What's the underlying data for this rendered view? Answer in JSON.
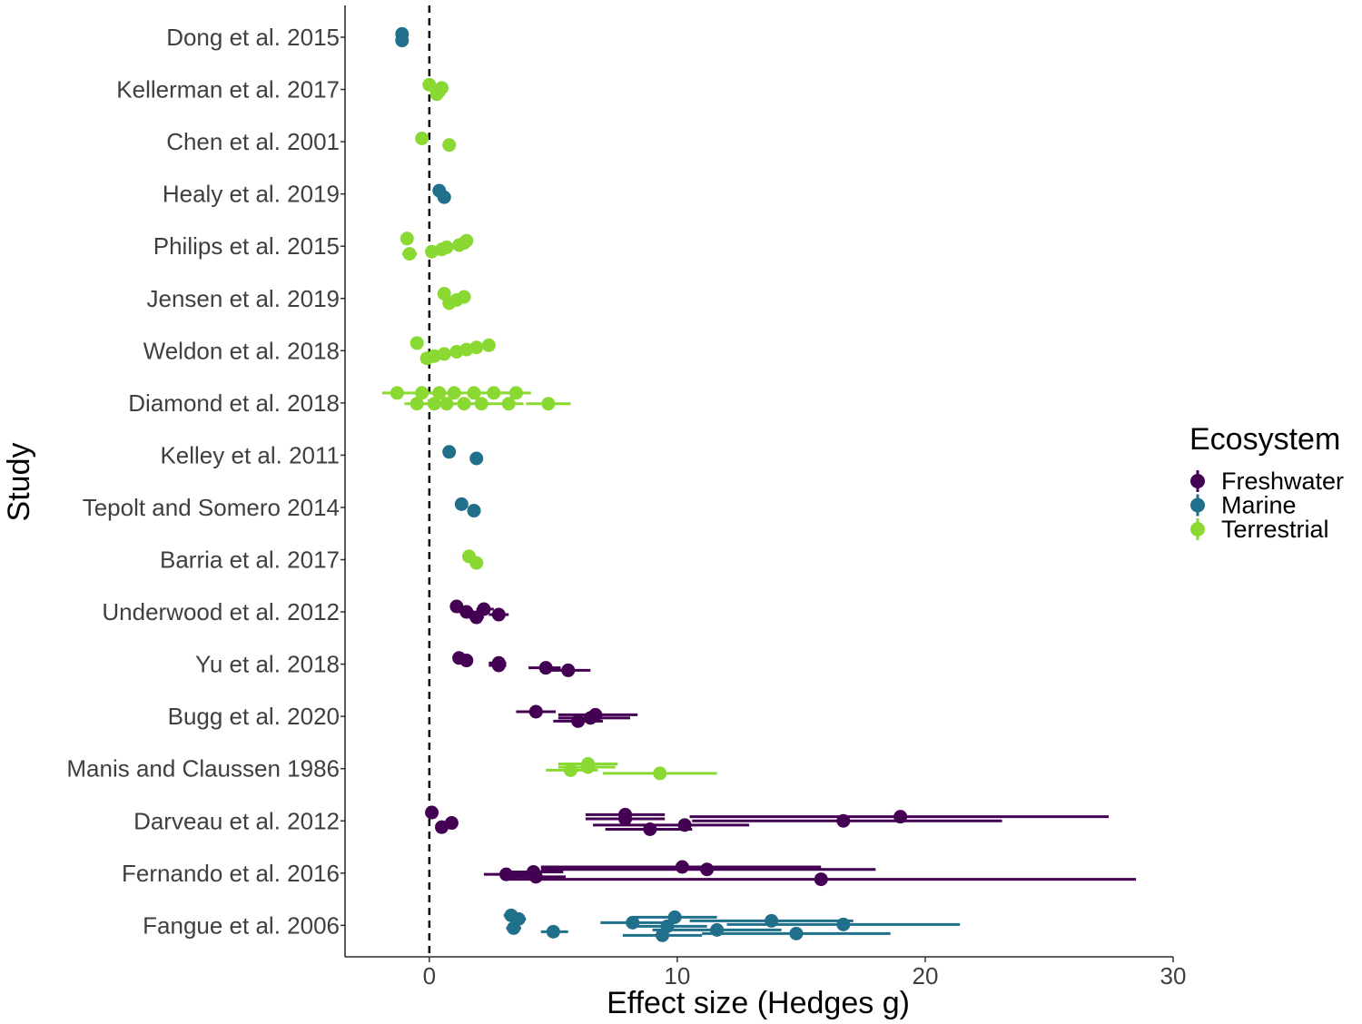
{
  "chart_data": {
    "type": "scatter",
    "subtype": "forest-plot",
    "title": "",
    "xlabel": "Effect size (Hedges g)",
    "ylabel": "Study",
    "xlim": [
      -3.4,
      30
    ],
    "x_ticks": [
      0,
      10,
      20,
      30
    ],
    "reference_line": {
      "x": 0,
      "style": "dashed"
    },
    "grid": false,
    "legend": {
      "title": "Ecosystem",
      "position": "right",
      "entries": [
        {
          "name": "Freshwater",
          "color": "#440154"
        },
        {
          "name": "Marine",
          "color": "#21708b"
        },
        {
          "name": "Terrestrial",
          "color": "#8ad932"
        }
      ]
    },
    "studies": [
      "Dong et al. 2015",
      "Kellerman et al. 2017",
      "Chen et al. 2001",
      "Healy et al. 2019",
      "Philips et al. 2015",
      "Jensen et al. 2019",
      "Weldon et al. 2018",
      "Diamond et al. 2018",
      "Kelley et al. 2011",
      "Tepolt and Somero 2014",
      "Barria et al. 2017",
      "Underwood et al. 2012",
      "Yu et al. 2018",
      "Bugg et al. 2020",
      "Manis and Claussen 1986",
      "Darveau et al. 2012",
      "Fernando et al. 2016",
      "Fangue et al. 2006"
    ],
    "series": [
      {
        "name": "Freshwater",
        "points": [
          {
            "study": "Underwood et al. 2012",
            "x": 1.1,
            "lo": 0.9,
            "hi": 1.3
          },
          {
            "study": "Underwood et al. 2012",
            "x": 1.5,
            "lo": 1.2,
            "hi": 1.8
          },
          {
            "study": "Underwood et al. 2012",
            "x": 1.9,
            "lo": 1.6,
            "hi": 2.2
          },
          {
            "study": "Underwood et al. 2012",
            "x": 2.2,
            "lo": 1.9,
            "hi": 2.6
          },
          {
            "study": "Underwood et al. 2012",
            "x": 2.8,
            "lo": 2.4,
            "hi": 3.2
          },
          {
            "study": "Yu et al. 2018",
            "x": 1.2,
            "lo": 1.0,
            "hi": 1.4
          },
          {
            "study": "Yu et al. 2018",
            "x": 1.5,
            "lo": 1.3,
            "hi": 1.7
          },
          {
            "study": "Yu et al. 2018",
            "x": 2.8,
            "lo": 2.4,
            "hi": 3.1
          },
          {
            "study": "Yu et al. 2018",
            "x": 2.8,
            "lo": 2.4,
            "hi": 3.1
          },
          {
            "study": "Yu et al. 2018",
            "x": 4.7,
            "lo": 4.0,
            "hi": 5.3
          },
          {
            "study": "Yu et al. 2018",
            "x": 5.6,
            "lo": 4.9,
            "hi": 6.5
          },
          {
            "study": "Bugg et al. 2020",
            "x": 4.3,
            "lo": 3.5,
            "hi": 5.1
          },
          {
            "study": "Bugg et al. 2020",
            "x": 6.0,
            "lo": 5.0,
            "hi": 7.0
          },
          {
            "study": "Bugg et al. 2020",
            "x": 6.5,
            "lo": 5.2,
            "hi": 8.1
          },
          {
            "study": "Bugg et al. 2020",
            "x": 6.7,
            "lo": 5.2,
            "hi": 8.4
          },
          {
            "study": "Darveau et al. 2012",
            "x": 0.1,
            "lo": -0.1,
            "hi": 0.3
          },
          {
            "study": "Darveau et al. 2012",
            "x": 0.5,
            "lo": 0.3,
            "hi": 0.7
          },
          {
            "study": "Darveau et al. 2012",
            "x": 0.9,
            "lo": 0.7,
            "hi": 1.1
          },
          {
            "study": "Darveau et al. 2012",
            "x": 7.9,
            "lo": 6.3,
            "hi": 9.5
          },
          {
            "study": "Darveau et al. 2012",
            "x": 7.9,
            "lo": 6.3,
            "hi": 9.5
          },
          {
            "study": "Darveau et al. 2012",
            "x": 8.9,
            "lo": 7.1,
            "hi": 10.6
          },
          {
            "study": "Darveau et al. 2012",
            "x": 10.3,
            "lo": 6.6,
            "hi": 12.9
          },
          {
            "study": "Darveau et al. 2012",
            "x": 16.7,
            "lo": 10.6,
            "hi": 23.1
          },
          {
            "study": "Darveau et al. 2012",
            "x": 19.0,
            "lo": 10.5,
            "hi": 27.4
          },
          {
            "study": "Fernando et al. 2016",
            "x": 10.2,
            "lo": 4.5,
            "hi": 15.8
          },
          {
            "study": "Fernando et al. 2016",
            "x": 11.2,
            "lo": 4.5,
            "hi": 18.0
          },
          {
            "study": "Fernando et al. 2016",
            "x": 4.2,
            "lo": 3.0,
            "hi": 5.4
          },
          {
            "study": "Fernando et al. 2016",
            "x": 3.1,
            "lo": 2.2,
            "hi": 4.2
          },
          {
            "study": "Fernando et al. 2016",
            "x": 4.3,
            "lo": 3.0,
            "hi": 5.5
          },
          {
            "study": "Fernando et al. 2016",
            "x": 15.8,
            "lo": 3.1,
            "hi": 28.5
          }
        ]
      },
      {
        "name": "Marine",
        "points": [
          {
            "study": "Dong et al. 2015",
            "x": -1.1,
            "lo": -1.2,
            "hi": -1.0
          },
          {
            "study": "Dong et al. 2015",
            "x": -1.1,
            "lo": -1.2,
            "hi": -1.0
          },
          {
            "study": "Healy et al. 2019",
            "x": 0.4,
            "lo": 0.3,
            "hi": 0.6
          },
          {
            "study": "Healy et al. 2019",
            "x": 0.6,
            "lo": 0.4,
            "hi": 0.8
          },
          {
            "study": "Kelley et al. 2011",
            "x": 0.8,
            "lo": 0.6,
            "hi": 1.0
          },
          {
            "study": "Kelley et al. 2011",
            "x": 1.9,
            "lo": 1.7,
            "hi": 2.1
          },
          {
            "study": "Tepolt and Somero 2014",
            "x": 1.3,
            "lo": 1.1,
            "hi": 1.5
          },
          {
            "study": "Tepolt and Somero 2014",
            "x": 1.8,
            "lo": 1.6,
            "hi": 2.0
          },
          {
            "study": "Fangue et al. 2006",
            "x": 3.3,
            "lo": 3.0,
            "hi": 3.6
          },
          {
            "study": "Fangue et al. 2006",
            "x": 3.4,
            "lo": 3.1,
            "hi": 3.7
          },
          {
            "study": "Fangue et al. 2006",
            "x": 3.6,
            "lo": 3.3,
            "hi": 3.9
          },
          {
            "study": "Fangue et al. 2006",
            "x": 5.0,
            "lo": 4.5,
            "hi": 5.6
          },
          {
            "study": "Fangue et al. 2006",
            "x": 8.2,
            "lo": 6.9,
            "hi": 9.5
          },
          {
            "study": "Fangue et al. 2006",
            "x": 9.4,
            "lo": 7.8,
            "hi": 11.0
          },
          {
            "study": "Fangue et al. 2006",
            "x": 9.6,
            "lo": 8.1,
            "hi": 11.2
          },
          {
            "study": "Fangue et al. 2006",
            "x": 9.9,
            "lo": 8.2,
            "hi": 11.6
          },
          {
            "study": "Fangue et al. 2006",
            "x": 11.6,
            "lo": 9.0,
            "hi": 14.2
          },
          {
            "study": "Fangue et al. 2006",
            "x": 13.8,
            "lo": 10.5,
            "hi": 17.1
          },
          {
            "study": "Fangue et al. 2006",
            "x": 14.8,
            "lo": 11.0,
            "hi": 18.6
          },
          {
            "study": "Fangue et al. 2006",
            "x": 16.7,
            "lo": 12.0,
            "hi": 21.4
          }
        ]
      },
      {
        "name": "Terrestrial",
        "points": [
          {
            "study": "Kellerman et al. 2017",
            "x": 0.0,
            "lo": -0.1,
            "hi": 0.1
          },
          {
            "study": "Kellerman et al. 2017",
            "x": 0.3,
            "lo": 0.2,
            "hi": 0.4
          },
          {
            "study": "Kellerman et al. 2017",
            "x": 0.4,
            "lo": 0.3,
            "hi": 0.5
          },
          {
            "study": "Kellerman et al. 2017",
            "x": 0.5,
            "lo": 0.4,
            "hi": 0.6
          },
          {
            "study": "Chen et al. 2001",
            "x": -0.3,
            "lo": -0.4,
            "hi": -0.2
          },
          {
            "study": "Chen et al. 2001",
            "x": 0.8,
            "lo": 0.7,
            "hi": 0.9
          },
          {
            "study": "Philips et al. 2015",
            "x": -0.9,
            "lo": -1.1,
            "hi": -0.7
          },
          {
            "study": "Philips et al. 2015",
            "x": -0.8,
            "lo": -1.1,
            "hi": -0.5
          },
          {
            "study": "Philips et al. 2015",
            "x": 0.1,
            "lo": -0.1,
            "hi": 0.3
          },
          {
            "study": "Philips et al. 2015",
            "x": 0.5,
            "lo": 0.3,
            "hi": 0.7
          },
          {
            "study": "Philips et al. 2015",
            "x": 0.7,
            "lo": 0.5,
            "hi": 0.9
          },
          {
            "study": "Philips et al. 2015",
            "x": 1.2,
            "lo": 1.0,
            "hi": 1.4
          },
          {
            "study": "Philips et al. 2015",
            "x": 1.4,
            "lo": 1.2,
            "hi": 1.6
          },
          {
            "study": "Philips et al. 2015",
            "x": 1.5,
            "lo": 1.3,
            "hi": 1.7
          },
          {
            "study": "Jensen et al. 2019",
            "x": 0.6,
            "lo": 0.5,
            "hi": 0.7
          },
          {
            "study": "Jensen et al. 2019",
            "x": 0.8,
            "lo": 0.7,
            "hi": 0.9
          },
          {
            "study": "Jensen et al. 2019",
            "x": 1.1,
            "lo": 1.0,
            "hi": 1.2
          },
          {
            "study": "Jensen et al. 2019",
            "x": 1.4,
            "lo": 1.3,
            "hi": 1.5
          },
          {
            "study": "Weldon et al. 2018",
            "x": -0.5,
            "lo": -0.6,
            "hi": -0.4
          },
          {
            "study": "Weldon et al. 2018",
            "x": -0.1,
            "lo": -0.2,
            "hi": 0.0
          },
          {
            "study": "Weldon et al. 2018",
            "x": 0.2,
            "lo": 0.1,
            "hi": 0.3
          },
          {
            "study": "Weldon et al. 2018",
            "x": 0.6,
            "lo": 0.5,
            "hi": 0.7
          },
          {
            "study": "Weldon et al. 2018",
            "x": 1.1,
            "lo": 1.0,
            "hi": 1.2
          },
          {
            "study": "Weldon et al. 2018",
            "x": 1.5,
            "lo": 1.4,
            "hi": 1.6
          },
          {
            "study": "Weldon et al. 2018",
            "x": 1.9,
            "lo": 1.8,
            "hi": 2.0
          },
          {
            "study": "Weldon et al. 2018",
            "x": 2.4,
            "lo": 2.3,
            "hi": 2.5
          },
          {
            "study": "Diamond et al. 2018",
            "x": -1.3,
            "lo": -1.9,
            "hi": -0.7
          },
          {
            "study": "Diamond et al. 2018",
            "x": -0.5,
            "lo": -1.0,
            "hi": 0.0
          },
          {
            "study": "Diamond et al. 2018",
            "x": -0.3,
            "lo": -0.7,
            "hi": 0.1
          },
          {
            "study": "Diamond et al. 2018",
            "x": 0.2,
            "lo": -0.2,
            "hi": 0.6
          },
          {
            "study": "Diamond et al. 2018",
            "x": 0.4,
            "lo": 0.0,
            "hi": 0.8
          },
          {
            "study": "Diamond et al. 2018",
            "x": 0.7,
            "lo": 0.3,
            "hi": 1.1
          },
          {
            "study": "Diamond et al. 2018",
            "x": 1.0,
            "lo": 0.6,
            "hi": 1.4
          },
          {
            "study": "Diamond et al. 2018",
            "x": 1.4,
            "lo": 1.0,
            "hi": 1.8
          },
          {
            "study": "Diamond et al. 2018",
            "x": 1.8,
            "lo": 1.4,
            "hi": 2.2
          },
          {
            "study": "Diamond et al. 2018",
            "x": 2.1,
            "lo": 1.6,
            "hi": 2.6
          },
          {
            "study": "Diamond et al. 2018",
            "x": 2.6,
            "lo": 2.1,
            "hi": 3.1
          },
          {
            "study": "Diamond et al. 2018",
            "x": 3.2,
            "lo": 2.6,
            "hi": 3.8
          },
          {
            "study": "Diamond et al. 2018",
            "x": 3.5,
            "lo": 2.9,
            "hi": 4.1
          },
          {
            "study": "Diamond et al. 2018",
            "x": 4.8,
            "lo": 3.9,
            "hi": 5.7
          },
          {
            "study": "Barria et al. 2017",
            "x": 1.6,
            "lo": 1.5,
            "hi": 1.7
          },
          {
            "study": "Barria et al. 2017",
            "x": 1.9,
            "lo": 1.8,
            "hi": 2.0
          },
          {
            "study": "Manis and Claussen 1986",
            "x": 6.4,
            "lo": 5.2,
            "hi": 7.6
          },
          {
            "study": "Manis and Claussen 1986",
            "x": 9.3,
            "lo": 7.0,
            "hi": 11.6
          },
          {
            "study": "Manis and Claussen 1986",
            "x": 5.7,
            "lo": 4.7,
            "hi": 6.8
          },
          {
            "study": "Manis and Claussen 1986",
            "x": 6.4,
            "lo": 5.2,
            "hi": 7.5
          }
        ]
      }
    ]
  }
}
